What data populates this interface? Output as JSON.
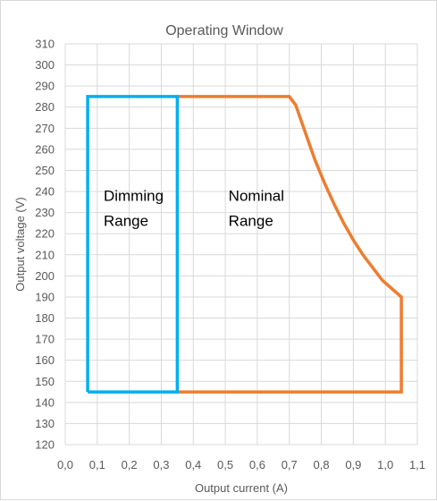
{
  "chart_data": {
    "type": "line",
    "title": "Operating Window",
    "xlabel": "Output current (A)",
    "ylabel": "Output voltage (V)",
    "xlim": [
      0.0,
      1.1
    ],
    "ylim": [
      120,
      310
    ],
    "x_ticks": [
      "0,0",
      "0,1",
      "0,2",
      "0,3",
      "0,4",
      "0,5",
      "0,6",
      "0,7",
      "0,8",
      "0,9",
      "1,0",
      "1,1"
    ],
    "x_tick_values": [
      0.0,
      0.1,
      0.2,
      0.3,
      0.4,
      0.5,
      0.6,
      0.7,
      0.8,
      0.9,
      1.0,
      1.1
    ],
    "y_ticks": [
      "120",
      "130",
      "140",
      "150",
      "160",
      "170",
      "180",
      "190",
      "200",
      "210",
      "220",
      "230",
      "240",
      "250",
      "260",
      "270",
      "280",
      "290",
      "300",
      "310"
    ],
    "y_tick_values": [
      120,
      130,
      140,
      150,
      160,
      170,
      180,
      190,
      200,
      210,
      220,
      230,
      240,
      250,
      260,
      270,
      280,
      290,
      300,
      310
    ],
    "grid": true,
    "series": [
      {
        "color": "#ed7d31",
        "points": [
          [
            0.35,
            285
          ],
          [
            0.7,
            285
          ],
          [
            0.72,
            281
          ],
          [
            0.75,
            268
          ],
          [
            0.78,
            255
          ],
          [
            0.81,
            244
          ],
          [
            0.84,
            234
          ],
          [
            0.87,
            225
          ],
          [
            0.9,
            217
          ],
          [
            0.93,
            210
          ],
          [
            0.96,
            204
          ],
          [
            0.99,
            198
          ],
          [
            1.02,
            194
          ],
          [
            1.05,
            190
          ],
          [
            1.05,
            145
          ],
          [
            0.35,
            145
          ]
        ]
      },
      {
        "color": "#00b0f0",
        "points": [
          [
            0.07,
            145
          ],
          [
            0.07,
            285
          ],
          [
            0.35,
            285
          ],
          [
            0.35,
            145
          ],
          [
            0.07,
            145
          ]
        ]
      }
    ],
    "annotations": [
      {
        "lines": [
          "Dimming",
          "Range"
        ],
        "x": 0.12,
        "y": 242
      },
      {
        "lines": [
          "Nominal",
          "Range"
        ],
        "x": 0.51,
        "y": 242
      }
    ]
  }
}
